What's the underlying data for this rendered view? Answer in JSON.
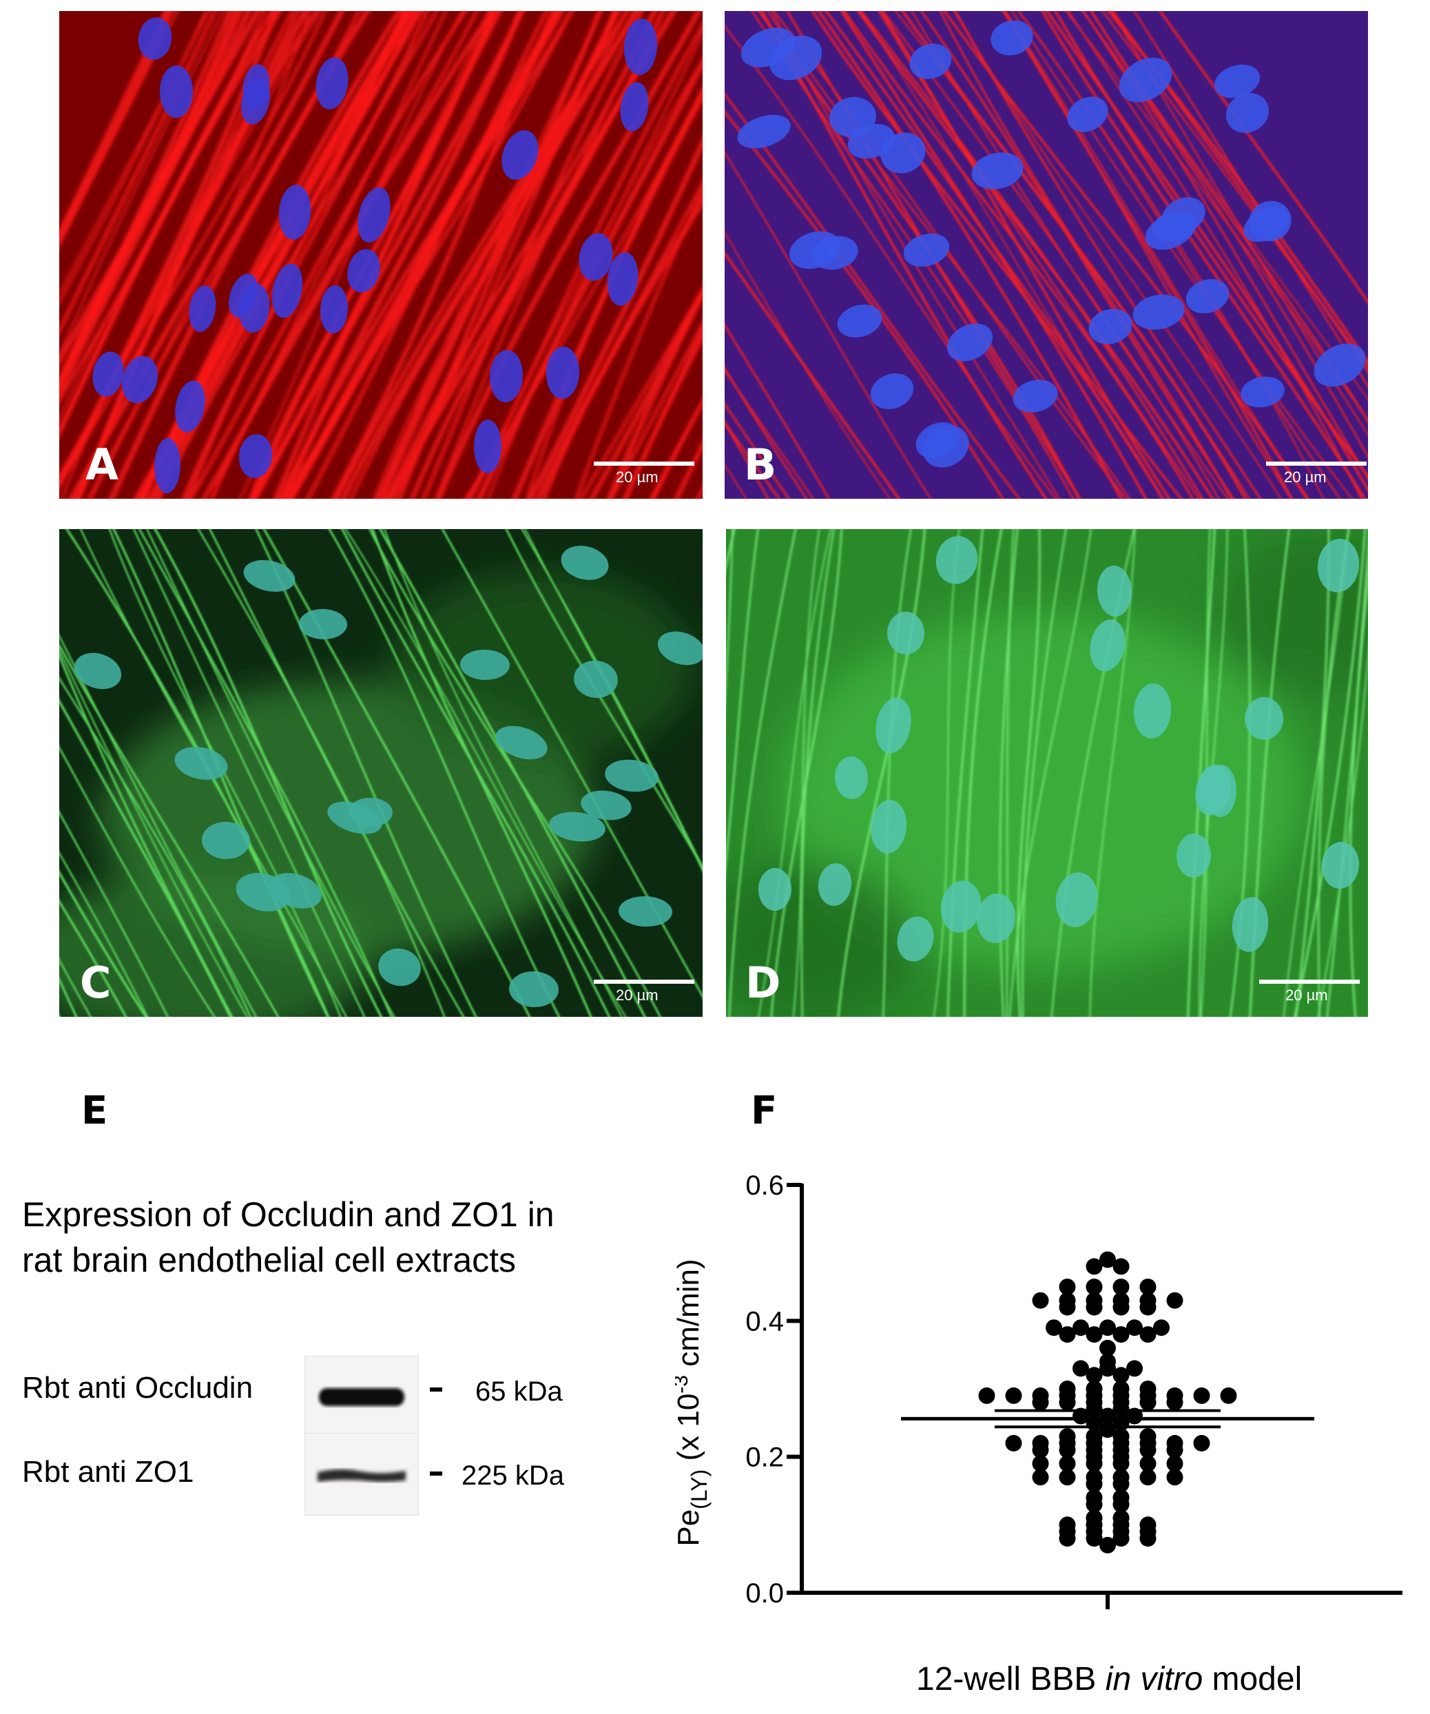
{
  "panels": [
    {
      "letter": "A",
      "scale": "20 µm"
    },
    {
      "letter": "B",
      "scale": "20 µm"
    },
    {
      "letter": "C",
      "scale": "20 µm"
    },
    {
      "letter": "D",
      "scale": "20 µm"
    }
  ],
  "panel_e": {
    "letter": "E",
    "title_line1": "Expression of Occludin and ZO1 in",
    "title_line2": "rat brain endothelial cell extracts",
    "rows": [
      {
        "label": "Rbt anti Occludin",
        "kda": "65 kDa"
      },
      {
        "label": "Rbt anti ZO1",
        "kda": "225 kDa"
      }
    ]
  },
  "panel_f": {
    "letter": "F",
    "xlabel_pre": "12-well BBB ",
    "xlabel_italic": "in vitro",
    "xlabel_post": " model"
  },
  "chart_data": {
    "type": "scatter",
    "ylabel": "Pe(LY) (x 10-3 cm/min)",
    "xlabel": "12-well BBB in vitro model",
    "ylim": [
      0,
      0.6
    ],
    "yticks": [
      0.0,
      0.2,
      0.4,
      0.6
    ],
    "ytick_labels": [
      "0.0",
      "0.2",
      "0.4",
      "0.6"
    ],
    "mean": 0.256,
    "sem": 0.012,
    "rows": [
      {
        "y": 0.49,
        "n": 1
      },
      {
        "y": 0.48,
        "n": 2
      },
      {
        "y": 0.45,
        "n": 4
      },
      {
        "y": 0.43,
        "n": 6
      },
      {
        "y": 0.42,
        "n": 4
      },
      {
        "y": 0.39,
        "n": 5
      },
      {
        "y": 0.38,
        "n": 4
      },
      {
        "y": 0.36,
        "n": 1
      },
      {
        "y": 0.34,
        "n": 1
      },
      {
        "y": 0.33,
        "n": 3
      },
      {
        "y": 0.32,
        "n": 2
      },
      {
        "y": 0.3,
        "n": 4
      },
      {
        "y": 0.29,
        "n": 10
      },
      {
        "y": 0.28,
        "n": 6
      },
      {
        "y": 0.27,
        "n": 2
      },
      {
        "y": 0.26,
        "n": 3
      },
      {
        "y": 0.25,
        "n": 2
      },
      {
        "y": 0.24,
        "n": 1
      },
      {
        "y": 0.23,
        "n": 4
      },
      {
        "y": 0.22,
        "n": 8
      },
      {
        "y": 0.21,
        "n": 6
      },
      {
        "y": 0.2,
        "n": 2
      },
      {
        "y": 0.19,
        "n": 6
      },
      {
        "y": 0.17,
        "n": 6
      },
      {
        "y": 0.16,
        "n": 2
      },
      {
        "y": 0.14,
        "n": 2
      },
      {
        "y": 0.13,
        "n": 2
      },
      {
        "y": 0.11,
        "n": 2
      },
      {
        "y": 0.1,
        "n": 4
      },
      {
        "y": 0.09,
        "n": 4
      },
      {
        "y": 0.08,
        "n": 4
      },
      {
        "y": 0.07,
        "n": 1
      }
    ]
  }
}
